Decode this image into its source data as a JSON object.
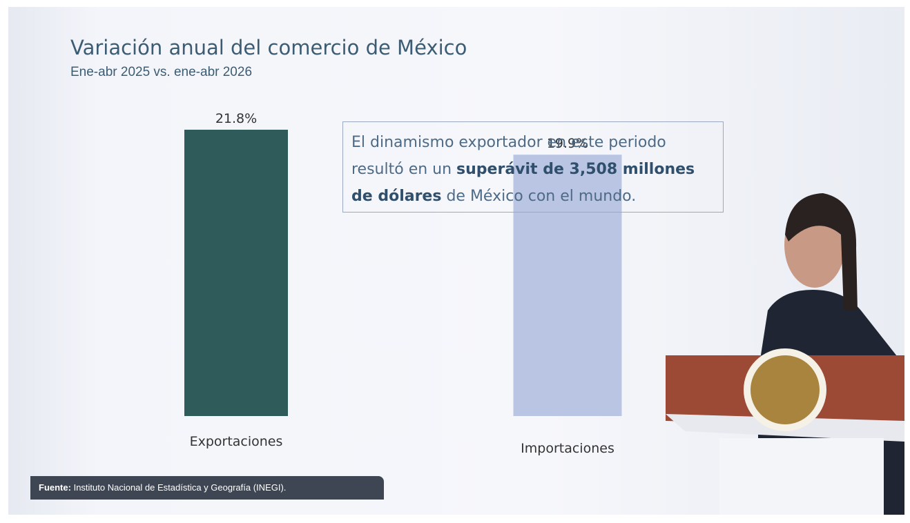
{
  "chart_data": {
    "type": "bar",
    "title": "Variación anual del comercio de México",
    "subtitle": "Ene-abr 2025 vs. ene-abr 2026",
    "categories": [
      "Exportaciones",
      "Importaciones"
    ],
    "values": [
      21.8,
      19.9
    ],
    "value_labels": [
      "21.8%",
      "19.9%"
    ],
    "colors": [
      "#2f5b5a",
      "#b9c5e2"
    ],
    "annotation": [
      "El dinamismo exportador en este periodo resultó en un ",
      "superávit de 3,508 millones de dólares",
      " de México con el mundo."
    ],
    "source_label": "Fuente:",
    "source": "Instituto Nacional de Estadística y Geografía (INEGI)."
  }
}
